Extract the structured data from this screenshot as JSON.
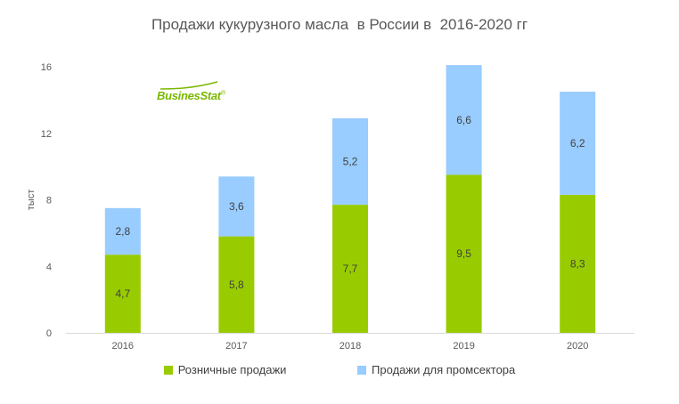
{
  "chart_data": {
    "type": "bar",
    "stacked": true,
    "title": "Продажи кукурузного масла  в России в  2016-2020 гг",
    "ylabel": "тыст",
    "xlabel": "",
    "categories": [
      "2016",
      "2017",
      "2018",
      "2019",
      "2020"
    ],
    "ylim": [
      0,
      16
    ],
    "yticks": [
      "0",
      "4",
      "8",
      "12",
      "16"
    ],
    "grid": false,
    "legend_position": "bottom",
    "series": [
      {
        "name": "Розничные продажи",
        "color": "#99cc00",
        "values": [
          4.7,
          5.8,
          7.7,
          9.5,
          8.3
        ],
        "labels": [
          "4,7",
          "5,8",
          "7,7",
          "9,5",
          "8,3"
        ]
      },
      {
        "name": "Продажи для промсектора",
        "color": "#99ccff",
        "values": [
          2.8,
          3.6,
          5.2,
          6.6,
          6.2
        ],
        "labels": [
          "2,8",
          "3,6",
          "5,2",
          "6,6",
          "6,2"
        ]
      }
    ]
  },
  "logo": {
    "text": "BusinesStat",
    "mark": "®"
  }
}
